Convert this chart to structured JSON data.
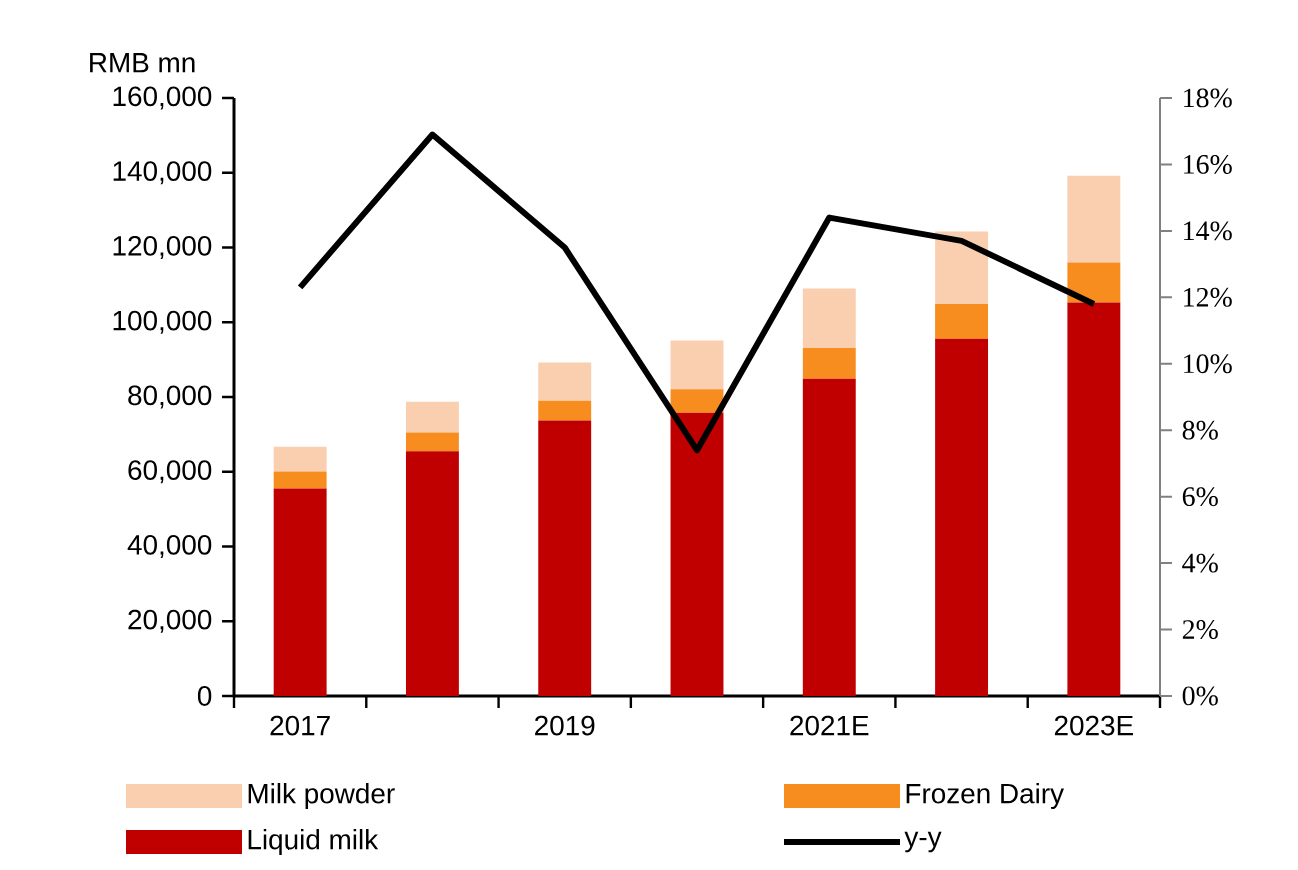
{
  "chart_data": {
    "type": "bar",
    "stacked": true,
    "ylabel": "RMB mn",
    "categories": [
      "2017",
      null,
      "2019",
      null,
      "2021E",
      null,
      "2023E"
    ],
    "series": [
      {
        "name": "Liquid milk",
        "color": "#c00000",
        "values": [
          55500,
          65500,
          73700,
          75800,
          84900,
          95600,
          105300
        ]
      },
      {
        "name": "Frozen Dairy",
        "color": "#f78c1f",
        "values": [
          4600,
          5000,
          5300,
          6300,
          8200,
          9300,
          10700
        ]
      },
      {
        "name": "Milk powder",
        "color": "#f9cfb0",
        "values": [
          6600,
          8200,
          10200,
          13000,
          15900,
          19400,
          23200
        ]
      },
      {
        "name": "y-y",
        "type": "line",
        "axis": "y2",
        "color": "#000000",
        "values": [
          12.3,
          16.9,
          13.5,
          7.4,
          14.4,
          13.7,
          11.8
        ]
      }
    ],
    "ylim": [
      0,
      160000
    ],
    "yticks": [
      0,
      {
        "value": 20000,
        "label": "20,000"
      },
      {
        "value": 40000,
        "label": "40,000"
      },
      {
        "value": 60000,
        "label": "60,000"
      },
      {
        "value": 80000,
        "label": "80,000"
      },
      {
        "value": 100000,
        "label": "100,000"
      },
      {
        "value": 120000,
        "label": "120,000"
      },
      {
        "value": 140000,
        "label": "140,000"
      },
      {
        "value": 160000,
        "label": "160,000"
      }
    ],
    "y2lim": [
      0,
      18
    ],
    "y2ticks": [
      {
        "value": 0,
        "label": "0%"
      },
      {
        "value": 2,
        "label": "2%"
      },
      {
        "value": 4,
        "label": "4%"
      },
      {
        "value": 6,
        "label": "6%"
      },
      {
        "value": 8,
        "label": "8%"
      },
      {
        "value": 10,
        "label": "10%"
      },
      {
        "value": 12,
        "label": "12%"
      },
      {
        "value": 14,
        "label": "14%"
      },
      {
        "value": 16,
        "label": "16%"
      },
      {
        "value": 18,
        "label": "18%"
      }
    ],
    "legend": "bottom",
    "grid": false,
    "marker": "none",
    "line_style": "solid"
  }
}
